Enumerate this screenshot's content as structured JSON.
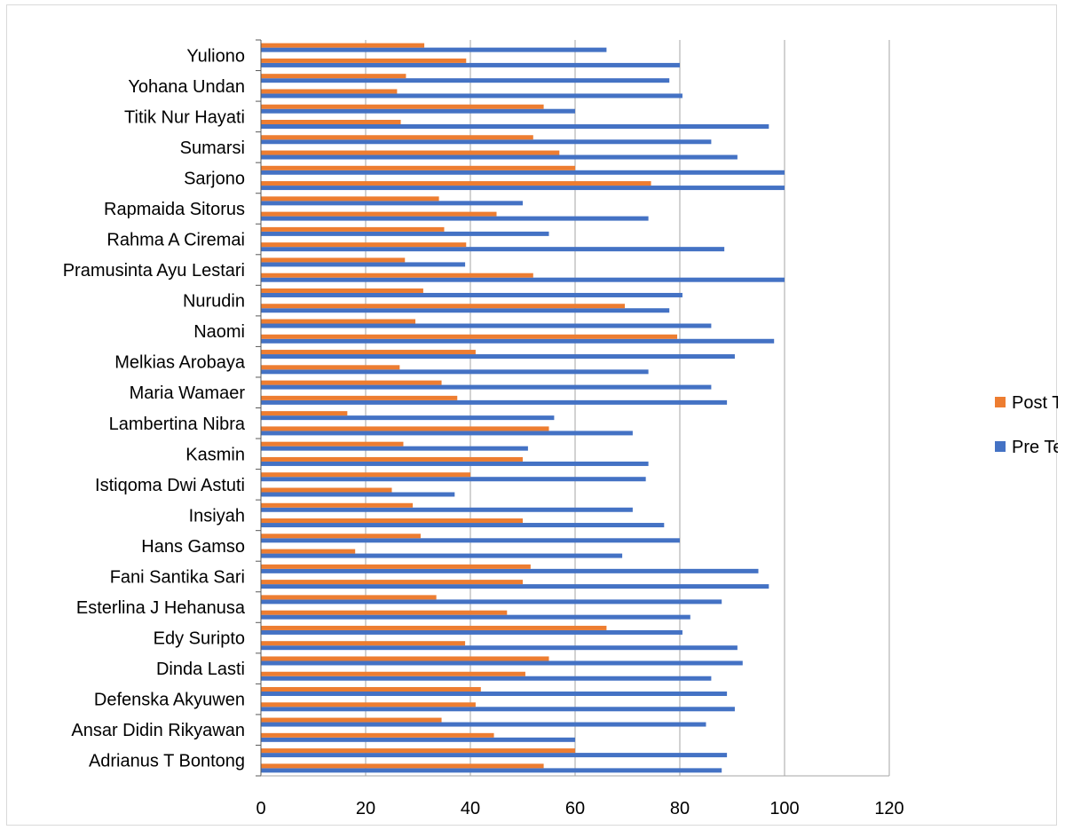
{
  "chart_data": {
    "type": "bar",
    "orientation": "horizontal",
    "title": "",
    "xlabel": "",
    "ylabel": "",
    "xlim": [
      0,
      120
    ],
    "xticks": [
      0,
      20,
      40,
      60,
      80,
      100,
      120
    ],
    "grid": "vertical",
    "legend_position": "right",
    "colors": {
      "post": "#ED7D31",
      "pre": "#4472C4",
      "grid": "#a6a6a6",
      "axis": "#595959"
    },
    "category_labels": [
      "Adrianus T Bontong",
      "Ansar Didin Rikyawan",
      "Defenska Akyuwen",
      "Dinda Lasti",
      "Edy Suripto",
      "Esterlina J Hehanusa",
      "Fani Santika Sari",
      "Hans Gamso",
      "Insiyah",
      "Istiqoma Dwi Astuti",
      "Kasmin",
      "Lambertina Nibra",
      "Maria Wamaer",
      "Melkias Arobaya",
      "Naomi",
      "Nurudin",
      "Pramusinta Ayu Lestari",
      "Rahma A Ciremai",
      "Rapmaida Sitorus",
      "Sarjono",
      "Sumarsi",
      "Titik Nur Hayati",
      "Yohana Undan",
      "Yuliono"
    ],
    "series": [
      {
        "name": "Pre Test",
        "values": [
          54,
          60,
          44.5,
          34.5,
          41,
          42,
          50.5,
          55,
          39,
          66,
          47,
          33.5,
          50,
          51.5,
          18,
          30.5,
          50,
          29,
          25,
          40,
          50,
          27.2,
          55,
          16.5,
          37.5,
          34.5,
          26.5,
          41,
          79.5,
          29.5,
          69.5,
          31,
          52,
          27.5,
          39.2,
          35,
          45,
          34,
          74.5,
          60,
          57,
          52,
          26.7,
          54,
          26,
          27.7,
          39.2,
          31.2
        ]
      },
      {
        "name": "Post Test",
        "values": [
          88,
          89,
          60,
          85,
          90.5,
          89,
          86,
          92,
          91,
          80.5,
          82,
          88,
          97,
          95,
          69,
          80,
          77,
          71,
          37,
          73.5,
          74,
          51,
          71,
          56,
          89,
          86,
          74,
          90.5,
          98,
          86,
          78,
          80.5,
          100,
          39,
          88.5,
          55,
          74,
          50,
          100,
          100,
          91,
          86,
          97,
          60,
          80.5,
          78,
          80,
          66
        ]
      }
    ]
  },
  "legend": {
    "post_label": "Post Test",
    "pre_label": "Pre Test"
  }
}
